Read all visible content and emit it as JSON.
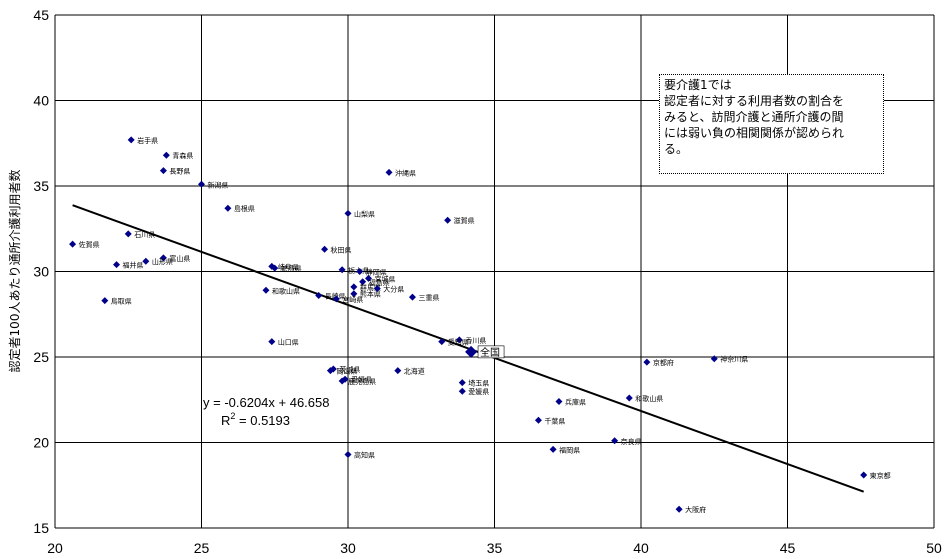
{
  "chart_data": {
    "type": "scatter",
    "title": "",
    "xlabel": "",
    "ylabel": "認定者100人あたり通所介護利用者数",
    "xlim": [
      20,
      50
    ],
    "ylim": [
      15,
      45
    ],
    "xticks": [
      20,
      25,
      30,
      35,
      40,
      45,
      50
    ],
    "yticks": [
      15,
      20,
      25,
      30,
      35,
      40,
      45
    ],
    "grid": true,
    "points": [
      {
        "label": "岩手県",
        "x": 22.6,
        "y": 37.7
      },
      {
        "label": "青森県",
        "x": 23.8,
        "y": 36.8
      },
      {
        "label": "長野県",
        "x": 23.7,
        "y": 35.9
      },
      {
        "label": "新潟県",
        "x": 25.0,
        "y": 35.1
      },
      {
        "label": "沖縄県",
        "x": 31.4,
        "y": 35.8
      },
      {
        "label": "島根県",
        "x": 25.9,
        "y": 33.7
      },
      {
        "label": "山梨県",
        "x": 30.0,
        "y": 33.4
      },
      {
        "label": "滋賀県",
        "x": 33.4,
        "y": 33.0
      },
      {
        "label": "佐賀県",
        "x": 20.6,
        "y": 31.6
      },
      {
        "label": "石川県",
        "x": 22.5,
        "y": 32.2
      },
      {
        "label": "秋田県",
        "x": 29.2,
        "y": 31.3
      },
      {
        "label": "富山県",
        "x": 23.7,
        "y": 30.8
      },
      {
        "label": "山形県",
        "x": 23.1,
        "y": 30.6
      },
      {
        "label": "福井県",
        "x": 22.1,
        "y": 30.4
      },
      {
        "label": "岐阜県",
        "x": 27.4,
        "y": 30.3
      },
      {
        "label": "栃木県",
        "x": 29.8,
        "y": 30.1
      },
      {
        "label": "静岡県",
        "x": 30.4,
        "y": 30.0
      },
      {
        "label": "徳島県",
        "x": 27.5,
        "y": 30.2
      },
      {
        "label": "宮城県",
        "x": 30.7,
        "y": 29.6
      },
      {
        "label": "福島県",
        "x": 30.5,
        "y": 29.4
      },
      {
        "label": "群馬県",
        "x": 30.2,
        "y": 29.1
      },
      {
        "label": "大分県",
        "x": 31.0,
        "y": 29.0
      },
      {
        "label": "熊本県",
        "x": 30.2,
        "y": 28.7
      },
      {
        "label": "和歌山県",
        "x": 27.2,
        "y": 28.9
      },
      {
        "label": "長崎県",
        "x": 29.0,
        "y": 28.6
      },
      {
        "label": "宮崎県",
        "x": 29.6,
        "y": 28.4
      },
      {
        "label": "三重県",
        "x": 32.2,
        "y": 28.5
      },
      {
        "label": "鳥取県",
        "x": 21.7,
        "y": 28.3
      },
      {
        "label": "香川県",
        "x": 33.8,
        "y": 26.0
      },
      {
        "label": "愛知県",
        "x": 33.2,
        "y": 25.9
      },
      {
        "label": "全国",
        "x": 34.2,
        "y": 25.3
      },
      {
        "label": "山口県",
        "x": 27.4,
        "y": 25.9
      },
      {
        "label": "京都府",
        "x": 40.2,
        "y": 24.7
      },
      {
        "label": "神奈川県",
        "x": 42.5,
        "y": 24.9
      },
      {
        "label": "茨城県",
        "x": 29.5,
        "y": 24.3
      },
      {
        "label": "岡山県",
        "x": 29.4,
        "y": 24.2
      },
      {
        "label": "北海道",
        "x": 31.7,
        "y": 24.2
      },
      {
        "label": "愛媛県",
        "x": 29.9,
        "y": 23.7
      },
      {
        "label": "鹿児島県",
        "x": 29.8,
        "y": 23.6
      },
      {
        "label": "埼玉県",
        "x": 33.9,
        "y": 23.5
      },
      {
        "label": "愛媛県",
        "x": 33.9,
        "y": 23.0
      },
      {
        "label": "和歌山県",
        "x": 39.6,
        "y": 22.6
      },
      {
        "label": "兵庫県",
        "x": 37.2,
        "y": 22.4
      },
      {
        "label": "千葉県",
        "x": 36.5,
        "y": 21.3
      },
      {
        "label": "奈良県",
        "x": 39.1,
        "y": 20.1
      },
      {
        "label": "福岡県",
        "x": 37.0,
        "y": 19.6
      },
      {
        "label": "高知県",
        "x": 30.0,
        "y": 19.3
      },
      {
        "label": "東京都",
        "x": 47.6,
        "y": 18.1
      },
      {
        "label": "大阪府",
        "x": 41.3,
        "y": 16.1
      }
    ],
    "trendline": {
      "slope": -0.6204,
      "intercept": 46.658,
      "x_range": [
        20.6,
        47.6
      ],
      "equation": "y = -0.6204x + 46.658",
      "r2_prefix": "R",
      "r2_sup": "2",
      "r2_suffix": " = 0.5193"
    },
    "annotation": [
      "要介護1では",
      "認定者に対する利用者数の割合を",
      "みると、訪問介護と通所介護の間",
      "には弱い負の相関関係が認められ",
      "る。"
    ],
    "colors": {
      "marker": "#00008B",
      "trendline": "#000000",
      "grid": "#000000"
    }
  }
}
